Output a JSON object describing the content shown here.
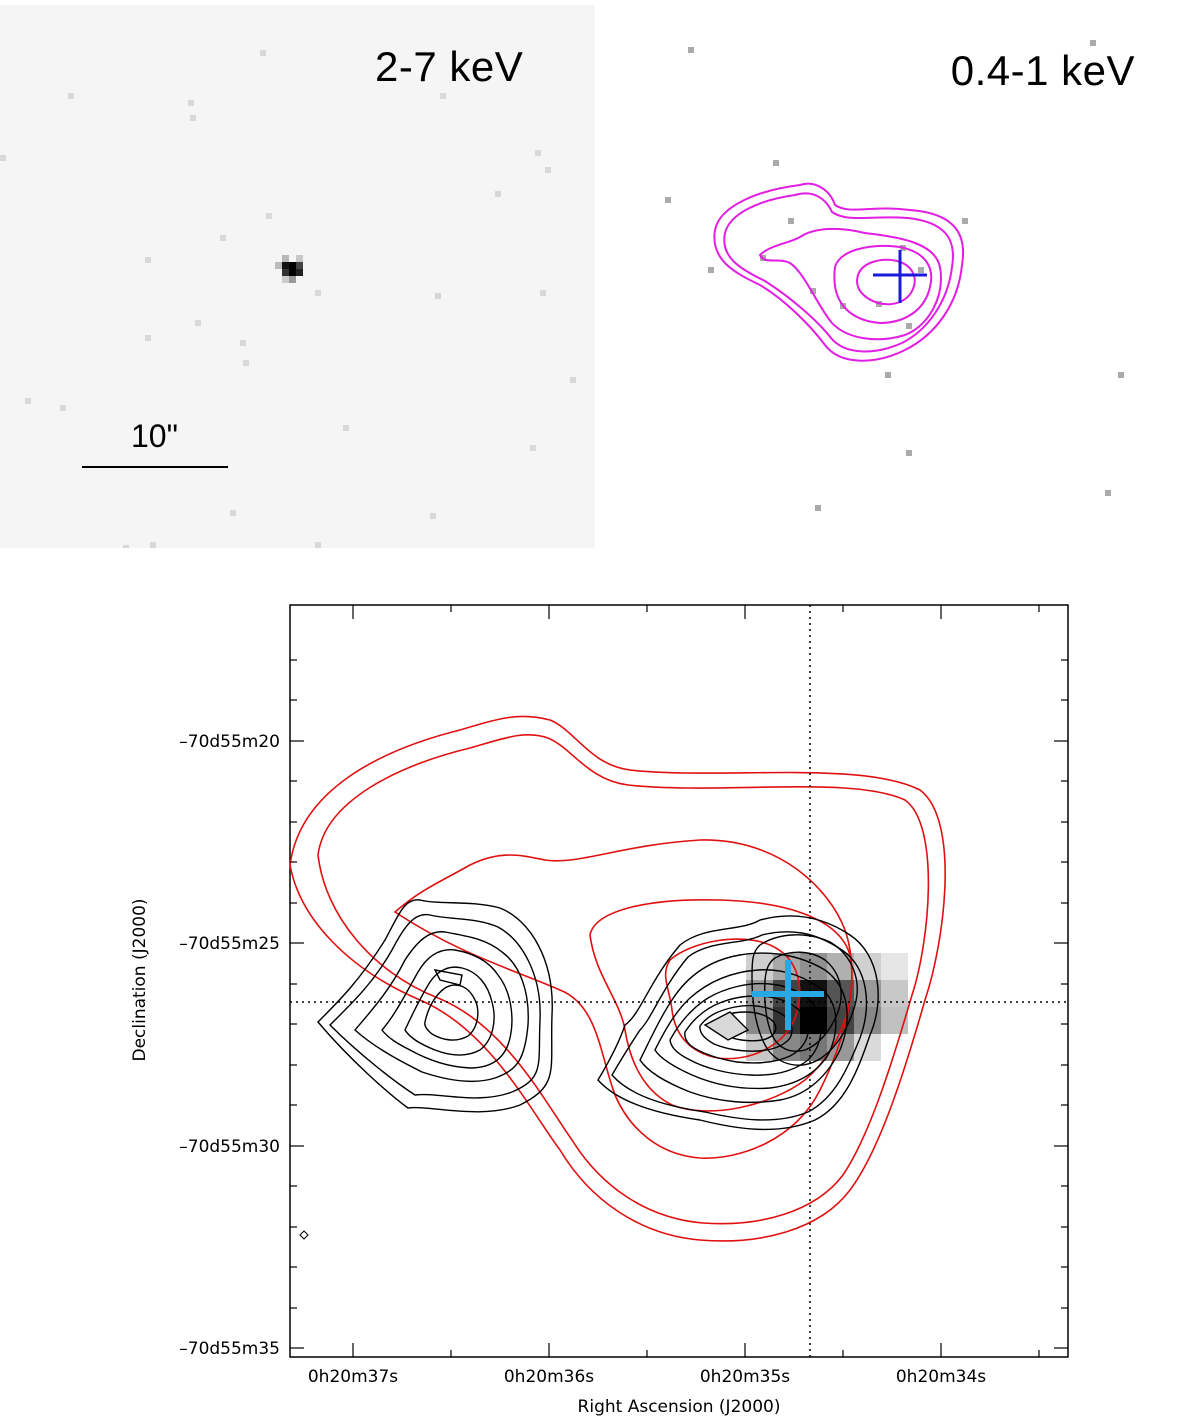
{
  "panels": {
    "hard": {
      "band_label": "2-7 keV",
      "scalebar_label": "10\""
    },
    "soft": {
      "band_label": "0.4-1 keV"
    }
  },
  "main_plot": {
    "xlabel": "Right Ascension (J2000)",
    "ylabel": "Declination (J2000)",
    "x_ticks": [
      "0h20m37s",
      "0h20m36s",
      "0h20m35s",
      "0h20m34s"
    ],
    "y_ticks": [
      "–70d55m20",
      "–70d55m25",
      "–70d55m30",
      "–70d55m35"
    ]
  },
  "colors": {
    "soft_contours": "#e21ee2",
    "soft_cross": "#1a1adc",
    "radio_contours": "#e01010",
    "main_cross": "#29a8e6",
    "optical_contours": "#000000"
  }
}
